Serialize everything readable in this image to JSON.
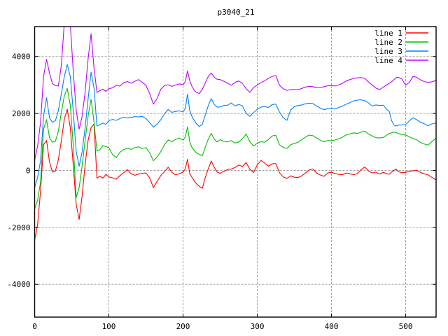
{
  "title": "p3040_21",
  "colors": {
    "background": "#ffffff",
    "border": "#000000",
    "grid": "#a0a0a0",
    "text": "#000000"
  },
  "legend": {
    "position": "top-right",
    "entries": [
      {
        "label": "line 1",
        "color": "#ff0000"
      },
      {
        "label": "line 2",
        "color": "#00c000"
      },
      {
        "label": "line 3",
        "color": "#0080ff"
      },
      {
        "label": "line 4",
        "color": "#c000ff"
      }
    ]
  },
  "axes": {
    "x": {
      "ticks": [
        0,
        100,
        200,
        300,
        400,
        500
      ]
    },
    "y": {
      "ticks": [
        -4000,
        -2000,
        0,
        2000,
        4000
      ]
    },
    "grid": "dashed"
  },
  "chart_data": {
    "type": "line",
    "title": "p3040_21",
    "xlabel": "",
    "ylabel": "",
    "xlim": [
      0,
      541
    ],
    "ylim": [
      -5150,
      5050
    ],
    "xticks": [
      0,
      100,
      200,
      300,
      400,
      500
    ],
    "yticks": [
      -4000,
      -2000,
      0,
      2000,
      4000
    ],
    "grid": "dashed",
    "legend_position": "top-right",
    "x": [
      0,
      4,
      8,
      12,
      16,
      20,
      24,
      28,
      32,
      36,
      40,
      44,
      48,
      52,
      56,
      60,
      64,
      68,
      72,
      76,
      80,
      84,
      88,
      92,
      96,
      100,
      105,
      110,
      115,
      120,
      125,
      130,
      135,
      140,
      145,
      150,
      155,
      160,
      165,
      170,
      175,
      180,
      185,
      190,
      195,
      200,
      203,
      206,
      209,
      212,
      215,
      218,
      222,
      226,
      230,
      234,
      238,
      242,
      246,
      250,
      255,
      260,
      265,
      270,
      275,
      280,
      285,
      290,
      295,
      300,
      305,
      310,
      315,
      320,
      325,
      330,
      335,
      340,
      345,
      350,
      355,
      360,
      365,
      370,
      375,
      380,
      385,
      390,
      395,
      400,
      405,
      410,
      415,
      420,
      425,
      430,
      435,
      440,
      445,
      450,
      455,
      460,
      465,
      470,
      475,
      478,
      481,
      484,
      487,
      490,
      495,
      500,
      505,
      510,
      515,
      520,
      525,
      530,
      535,
      540,
      541
    ],
    "series": [
      {
        "name": "line 1",
        "color": "#ff0000",
        "values": [
          -2450,
          -1900,
          -700,
          900,
          1050,
          300,
          -60,
          -20,
          380,
          1050,
          1800,
          2150,
          1500,
          200,
          -1200,
          -1720,
          -900,
          200,
          1050,
          1500,
          1630,
          -270,
          -200,
          -270,
          -140,
          -230,
          -260,
          -310,
          -180,
          -80,
          25,
          -120,
          -170,
          -130,
          -100,
          -90,
          -260,
          -600,
          -390,
          -180,
          -40,
          110,
          -70,
          -150,
          -120,
          -60,
          60,
          390,
          -120,
          -240,
          -360,
          -460,
          -560,
          -630,
          -250,
          60,
          330,
          110,
          -60,
          -100,
          -30,
          30,
          50,
          100,
          190,
          140,
          280,
          40,
          -70,
          190,
          350,
          260,
          150,
          230,
          240,
          -80,
          -230,
          -280,
          -190,
          -240,
          -250,
          -190,
          -90,
          20,
          50,
          -90,
          -160,
          -205,
          -90,
          -70,
          -110,
          -140,
          -150,
          -90,
          -120,
          -150,
          -110,
          30,
          120,
          -20,
          -90,
          -60,
          -130,
          -70,
          -120,
          -130,
          -60,
          0,
          50,
          -40,
          -80,
          -70,
          -30,
          -10,
          0,
          -70,
          -120,
          -150,
          -240,
          -320,
          -330
        ]
      },
      {
        "name": "line 2",
        "color": "#00c000",
        "values": [
          -1350,
          -1050,
          -400,
          1450,
          1780,
          1150,
          990,
          1030,
          1380,
          2050,
          2620,
          2880,
          2300,
          900,
          -950,
          -600,
          150,
          1050,
          1900,
          2500,
          1700,
          680,
          730,
          870,
          840,
          800,
          560,
          450,
          640,
          730,
          780,
          740,
          800,
          830,
          770,
          800,
          620,
          340,
          470,
          660,
          900,
          1070,
          1010,
          1090,
          1140,
          1060,
          1180,
          1530,
          1000,
          810,
          700,
          620,
          560,
          520,
          820,
          1100,
          1300,
          1100,
          1000,
          1080,
          1020,
          1000,
          1050,
          960,
          1000,
          1110,
          1280,
          1010,
          860,
          950,
          1010,
          990,
          1080,
          1210,
          1230,
          900,
          810,
          770,
          900,
          950,
          990,
          1080,
          1170,
          1240,
          1220,
          1140,
          1060,
          1000,
          1050,
          1040,
          1070,
          1110,
          1170,
          1250,
          1280,
          1320,
          1300,
          1340,
          1380,
          1280,
          1210,
          1150,
          1140,
          1160,
          1250,
          1300,
          1320,
          1345,
          1330,
          1300,
          1260,
          1245,
          1180,
          1120,
          1070,
          980,
          930,
          890,
          1000,
          1120,
          1135
        ]
      },
      {
        "name": "line 3",
        "color": "#0080ff",
        "values": [
          -600,
          -250,
          350,
          1900,
          2550,
          1850,
          1690,
          1750,
          2100,
          2700,
          3300,
          3720,
          3300,
          2100,
          650,
          150,
          650,
          1500,
          2500,
          3450,
          2900,
          1560,
          1610,
          1660,
          1620,
          1750,
          1790,
          1760,
          1820,
          1870,
          1840,
          1860,
          1890,
          1880,
          1900,
          1820,
          1680,
          1520,
          1620,
          1780,
          1990,
          2140,
          2040,
          2070,
          2090,
          2060,
          2180,
          2680,
          2100,
          1900,
          1760,
          1640,
          1540,
          1620,
          1950,
          2280,
          2520,
          2320,
          2220,
          2230,
          2280,
          2290,
          2370,
          2260,
          2320,
          2270,
          2010,
          1900,
          2030,
          2150,
          2220,
          2245,
          2210,
          2310,
          2330,
          2050,
          1850,
          1760,
          2120,
          2240,
          2280,
          2300,
          2340,
          2360,
          2350,
          2260,
          2190,
          2130,
          2170,
          2190,
          2160,
          2210,
          2260,
          2330,
          2380,
          2440,
          2470,
          2480,
          2450,
          2370,
          2260,
          2300,
          2280,
          2290,
          2130,
          2070,
          1750,
          1600,
          1560,
          1590,
          1600,
          1610,
          1740,
          1850,
          1780,
          1690,
          1640,
          1570,
          1630,
          1660,
          1655
        ]
      },
      {
        "name": "line 4",
        "color": "#c000ff",
        "values": [
          350,
          850,
          1700,
          3300,
          3900,
          3420,
          3050,
          2980,
          2960,
          3700,
          5200,
          5650,
          5150,
          3500,
          2100,
          1450,
          1900,
          2750,
          3900,
          4800,
          3600,
          2740,
          2800,
          2850,
          2780,
          2870,
          2900,
          2990,
          2960,
          3080,
          3120,
          3060,
          3130,
          3190,
          3090,
          2990,
          2700,
          2330,
          2520,
          2850,
          2980,
          3010,
          2950,
          3000,
          3040,
          3000,
          3120,
          3500,
          3150,
          2950,
          2820,
          2740,
          2700,
          2850,
          3080,
          3300,
          3420,
          3280,
          3200,
          3190,
          3130,
          3060,
          2990,
          3090,
          3140,
          3060,
          2870,
          2740,
          2910,
          3000,
          3080,
          3150,
          3230,
          3300,
          3330,
          2990,
          2870,
          2810,
          2840,
          2840,
          2830,
          2880,
          2930,
          2950,
          2940,
          2900,
          2910,
          2940,
          2970,
          2980,
          2965,
          3000,
          3060,
          3140,
          3190,
          3230,
          3250,
          3260,
          3230,
          3100,
          3000,
          2890,
          2840,
          2930,
          3010,
          3060,
          3110,
          3180,
          3260,
          3270,
          3210,
          2990,
          3090,
          3300,
          3270,
          3180,
          3120,
          3090,
          3110,
          3150,
          3150
        ]
      }
    ]
  }
}
